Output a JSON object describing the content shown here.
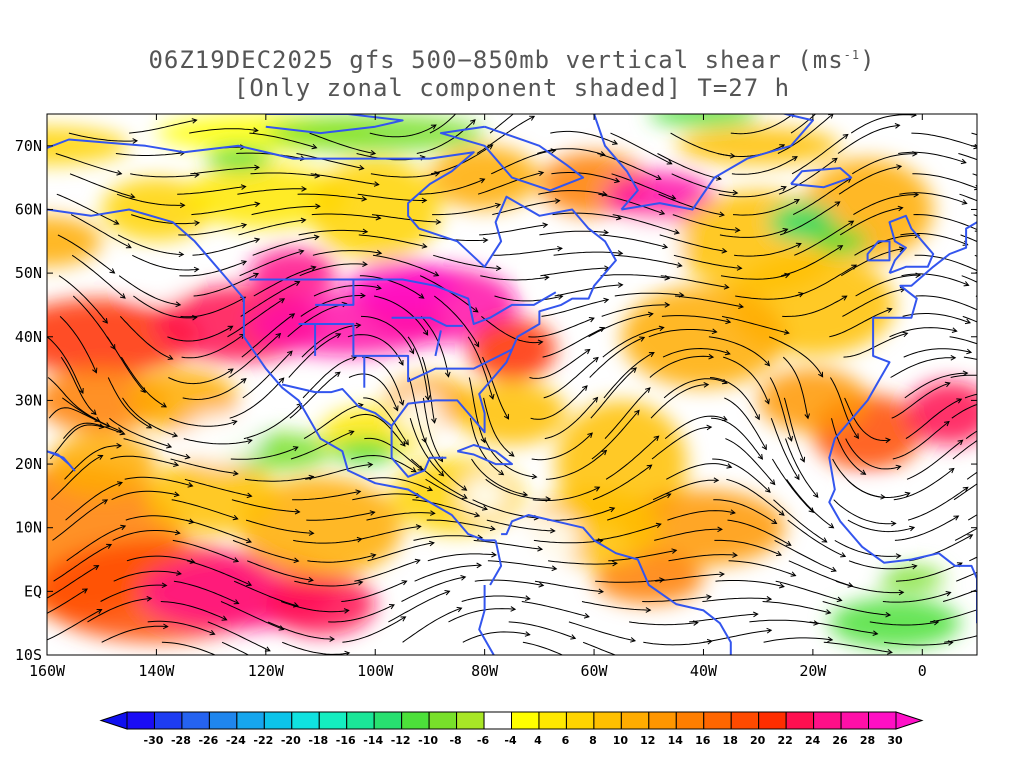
{
  "title": {
    "line1_prefix": "06Z19DEC2025 gfs 500−850mb vertical shear (ms",
    "line1_sup": "-1",
    "line1_suffix": ")",
    "line2": "[Only zonal component shaded] T=27 h"
  },
  "map": {
    "lon_range": [
      -160,
      10
    ],
    "lat_range": [
      -10,
      75
    ],
    "x_ticks": [
      {
        "value": -160,
        "label": "160W"
      },
      {
        "value": -140,
        "label": "140W"
      },
      {
        "value": -120,
        "label": "120W"
      },
      {
        "value": -100,
        "label": "100W"
      },
      {
        "value": -80,
        "label": "80W"
      },
      {
        "value": -60,
        "label": "60W"
      },
      {
        "value": -40,
        "label": "40W"
      },
      {
        "value": -20,
        "label": "20W"
      },
      {
        "value": 0,
        "label": "0"
      }
    ],
    "y_ticks": [
      {
        "value": -10,
        "label": "10S"
      },
      {
        "value": 0,
        "label": "EQ"
      },
      {
        "value": 10,
        "label": "10N"
      },
      {
        "value": 20,
        "label": "20N"
      },
      {
        "value": 30,
        "label": "30N"
      },
      {
        "value": 40,
        "label": "40N"
      },
      {
        "value": 50,
        "label": "50N"
      },
      {
        "value": 60,
        "label": "60N"
      },
      {
        "value": 70,
        "label": "70N"
      }
    ],
    "coastline_color": "#3355ee",
    "streamline_color": "#000000"
  },
  "colorbar": {
    "levels": [
      "-30",
      "-28",
      "-26",
      "-24",
      "-22",
      "-20",
      "-18",
      "-16",
      "-14",
      "-12",
      "-10",
      "-8",
      "-6",
      "-4",
      "4",
      "6",
      "8",
      "10",
      "12",
      "14",
      "16",
      "18",
      "20",
      "22",
      "24",
      "26",
      "28",
      "30"
    ],
    "colors": [
      "#1a0cf5",
      "#1e3cf2",
      "#2563f0",
      "#1f86ee",
      "#16a6ee",
      "#0cc4ea",
      "#10e2e0",
      "#14eec0",
      "#1ae698",
      "#28e070",
      "#4ce03a",
      "#78e02a",
      "#a8e626",
      "#ffffff",
      "#ffff00",
      "#ffe800",
      "#ffd400",
      "#ffc000",
      "#ffac00",
      "#ff9600",
      "#ff7e00",
      "#ff6600",
      "#ff4a00",
      "#ff2e00",
      "#ff1050",
      "#ff1088",
      "#ff10a8",
      "#ff10c4"
    ],
    "under_color": "#1010f0",
    "over_color": "#ff10c8"
  }
}
